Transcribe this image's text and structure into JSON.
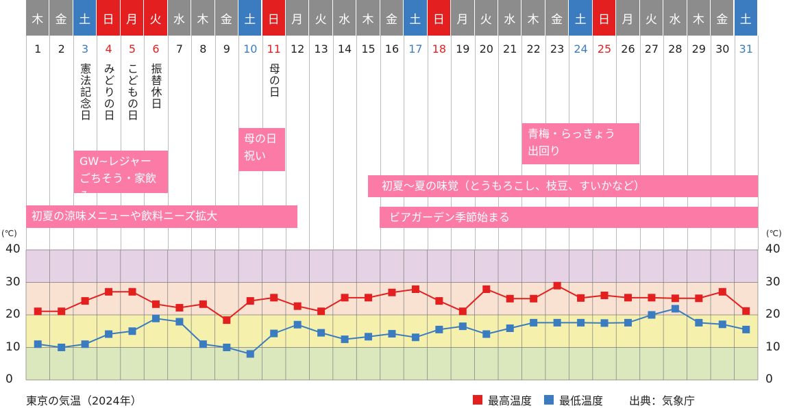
{
  "calendar": {
    "weekdays": [
      "木",
      "金",
      "土",
      "日",
      "月",
      "火",
      "水",
      "木",
      "金",
      "土",
      "日",
      "月",
      "火",
      "水",
      "木",
      "金",
      "土",
      "日",
      "月",
      "火",
      "水",
      "木",
      "金",
      "土",
      "日",
      "月",
      "火",
      "水",
      "木",
      "金",
      "土"
    ],
    "day_types": [
      "w",
      "w",
      "sat",
      "hol",
      "hol",
      "hol",
      "w",
      "w",
      "w",
      "sat",
      "hol",
      "w",
      "w",
      "w",
      "w",
      "w",
      "sat",
      "hol",
      "w",
      "w",
      "w",
      "w",
      "w",
      "sat",
      "hol",
      "w",
      "w",
      "w",
      "w",
      "w",
      "sat"
    ],
    "dates": [
      "1",
      "2",
      "3",
      "4",
      "5",
      "6",
      "7",
      "8",
      "9",
      "10",
      "11",
      "12",
      "13",
      "14",
      "15",
      "16",
      "17",
      "18",
      "19",
      "20",
      "21",
      "22",
      "23",
      "24",
      "25",
      "26",
      "27",
      "28",
      "29",
      "30",
      "31"
    ],
    "holidays": [
      {
        "day": 3,
        "name": "憲法記念日"
      },
      {
        "day": 4,
        "name": "みどりの日"
      },
      {
        "day": 5,
        "name": "こどもの日"
      },
      {
        "day": 6,
        "name": "振替休日"
      },
      {
        "day": 11,
        "name": "母の日"
      }
    ],
    "colors": {
      "w": "#8c8c8c",
      "sat": "#3b7bbf",
      "hol": "#e3201f",
      "event": "#fb7ba6"
    }
  },
  "events": [
    {
      "line1": "GW~レジャー",
      "line2": "ごちそう・家飲み"
    },
    {
      "line1": "母の日",
      "line2": "祝い"
    },
    {
      "line1": "青梅・らっきょう",
      "line2": "出回り"
    },
    {
      "line1": "初夏〜夏の味覚（とうもろこし、枝豆、すいかなど）"
    },
    {
      "line1": "初夏の涼味メニューや飲料ニーズ拡大"
    },
    {
      "line1": "ビアガーデン季節始まる"
    }
  ],
  "chart_data": {
    "type": "line",
    "title": "東京の気温（2024年）",
    "x": [
      1,
      2,
      3,
      4,
      5,
      6,
      7,
      8,
      9,
      10,
      11,
      12,
      13,
      14,
      15,
      16,
      17,
      18,
      19,
      20,
      21,
      22,
      23,
      24,
      25,
      26,
      27,
      28,
      29,
      30,
      31
    ],
    "series": [
      {
        "name": "最高温度",
        "color": "#e3201f",
        "values": [
          21.1,
          21.1,
          24.3,
          27.1,
          27.1,
          23.3,
          22.2,
          23.3,
          18.4,
          24.3,
          25.3,
          22.7,
          21.1,
          25.3,
          25.3,
          26.9,
          27.9,
          24.3,
          21.1,
          27.9,
          25.0,
          25.0,
          29.0,
          25.2,
          26.0,
          25.3,
          25.3,
          25.1,
          25.1,
          27.1,
          21.2
        ]
      },
      {
        "name": "最低温度",
        "color": "#3b7bbf",
        "values": [
          11.0,
          10.0,
          11.0,
          14.1,
          15.0,
          18.9,
          17.9,
          11.0,
          10.0,
          8.0,
          14.3,
          17.0,
          14.5,
          12.5,
          13.3,
          14.2,
          13.1,
          15.5,
          16.5,
          14.1,
          15.9,
          17.6,
          17.6,
          17.6,
          17.5,
          17.6,
          20.0,
          21.9,
          17.6,
          17.1,
          15.5
        ]
      }
    ],
    "ylabel": "(℃)",
    "ylabel_right": "(℃)",
    "ylim": [
      0,
      40
    ],
    "yticks": [
      "0",
      "10",
      "20",
      "30",
      "40"
    ],
    "bands": [
      {
        "from": 0,
        "to": 10,
        "color": "#dbe8bd"
      },
      {
        "from": 10,
        "to": 20,
        "color": "#f5f1ad"
      },
      {
        "from": 20,
        "to": 30,
        "color": "#f9e2d2"
      },
      {
        "from": 30,
        "to": 40,
        "color": "#e5d2e5"
      }
    ],
    "legend_position": "bottom-right",
    "source": "出典：気象庁"
  }
}
